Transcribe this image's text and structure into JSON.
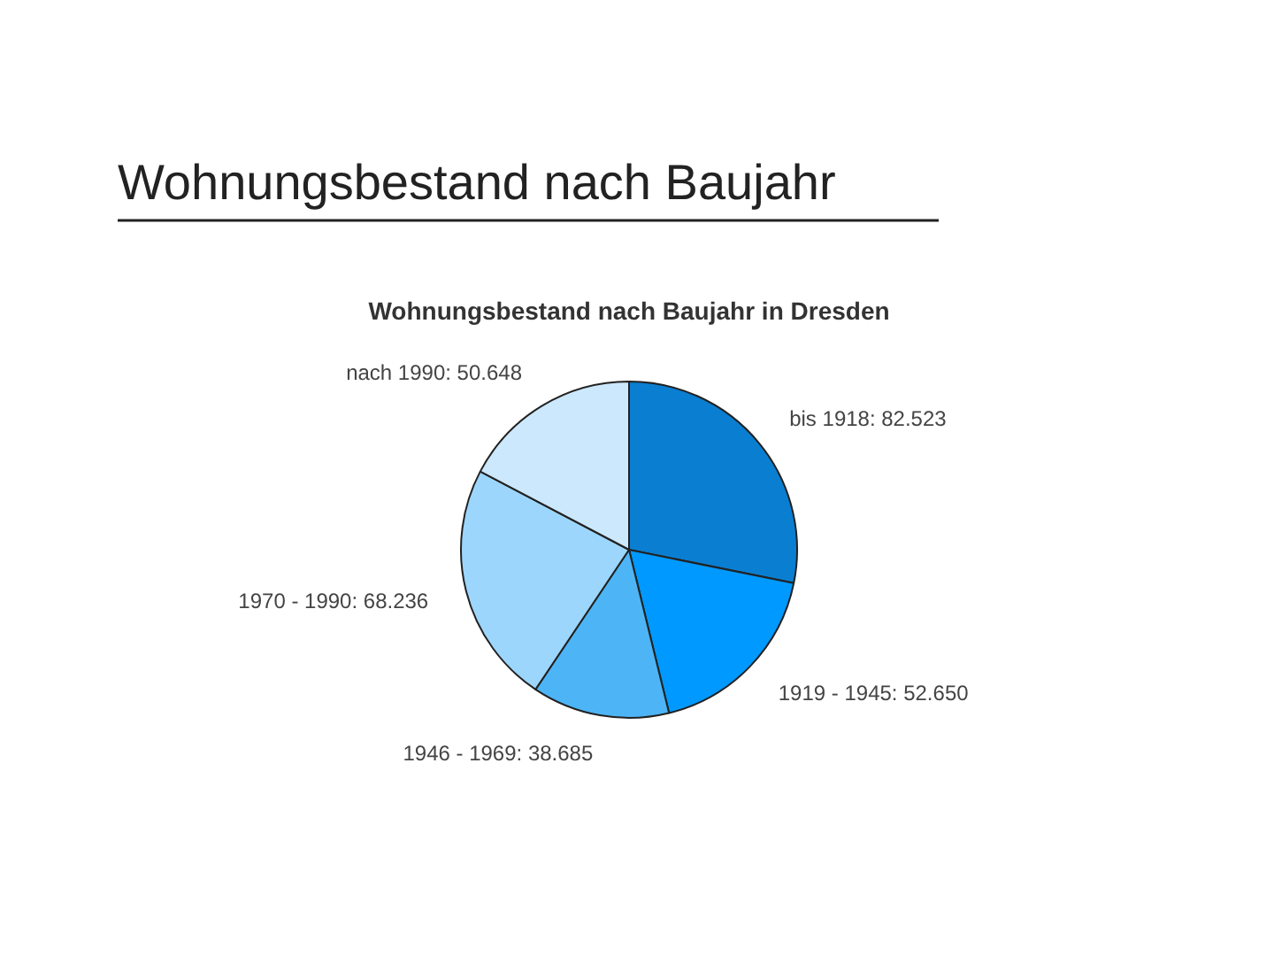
{
  "chart_data": {
    "type": "pie",
    "title": "Wohnungsbestand nach Baujahr",
    "subtitle": "Wohnungsbestand nach Baujahr in Dresden",
    "categories": [
      "bis 1918",
      "1919 - 1945",
      "1946 - 1969",
      "1970 - 1990",
      "nach 1990"
    ],
    "values": [
      82523,
      52650,
      38685,
      68236,
      50648
    ],
    "value_labels": [
      "82.523",
      "52.650",
      "38.685",
      "68.236",
      "50.648"
    ],
    "colors": [
      "#0a7fd2",
      "#0099ff",
      "#4db5f5",
      "#9dd6fc",
      "#cce8fc"
    ]
  }
}
